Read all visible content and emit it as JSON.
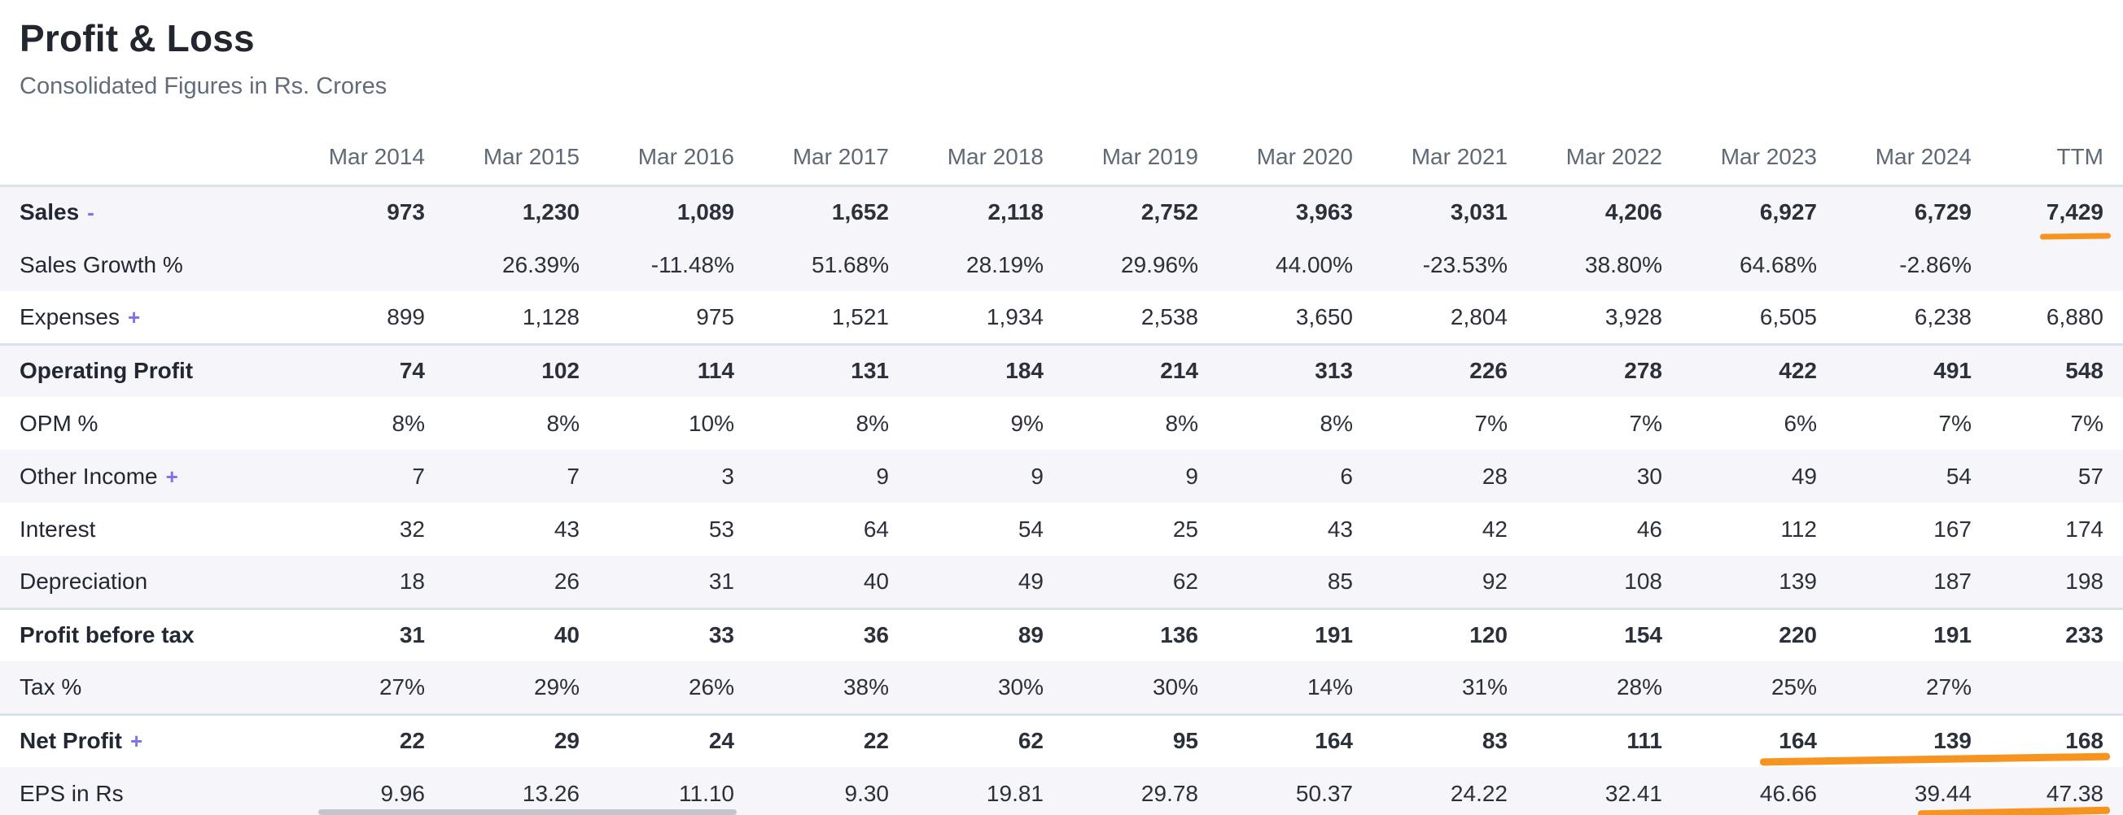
{
  "header": {
    "title": "Profit & Loss",
    "subtitle": "Consolidated Figures in Rs. Crores"
  },
  "colors": {
    "highlight_orange": "#f79420",
    "link_violet": "#7b72f0"
  },
  "table": {
    "columns": [
      "Mar 2014",
      "Mar 2015",
      "Mar 2016",
      "Mar 2017",
      "Mar 2018",
      "Mar 2019",
      "Mar 2020",
      "Mar 2021",
      "Mar 2022",
      "Mar 2023",
      "Mar 2024",
      "TTM"
    ],
    "rows": [
      {
        "label": "Sales",
        "suffix": "-",
        "bold": true,
        "striped": true,
        "values": [
          "973",
          "1,230",
          "1,089",
          "1,652",
          "2,118",
          "2,752",
          "3,963",
          "3,031",
          "4,206",
          "6,927",
          "6,729",
          "7,429"
        ]
      },
      {
        "label": "Sales Growth %",
        "suffix": "",
        "bold": false,
        "striped": true,
        "values": [
          "",
          "26.39%",
          "-11.48%",
          "51.68%",
          "28.19%",
          "29.96%",
          "44.00%",
          "-23.53%",
          "38.80%",
          "64.68%",
          "-2.86%",
          ""
        ]
      },
      {
        "label": "Expenses",
        "suffix": "+",
        "bold": false,
        "striped": false,
        "values": [
          "899",
          "1,128",
          "975",
          "1,521",
          "1,934",
          "2,538",
          "3,650",
          "2,804",
          "3,928",
          "6,505",
          "6,238",
          "6,880"
        ]
      },
      {
        "label": "Operating Profit",
        "suffix": "",
        "bold": true,
        "striped": true,
        "values": [
          "74",
          "102",
          "114",
          "131",
          "184",
          "214",
          "313",
          "226",
          "278",
          "422",
          "491",
          "548"
        ]
      },
      {
        "label": "OPM %",
        "suffix": "",
        "bold": false,
        "striped": false,
        "values": [
          "8%",
          "8%",
          "10%",
          "8%",
          "9%",
          "8%",
          "8%",
          "7%",
          "7%",
          "6%",
          "7%",
          "7%"
        ]
      },
      {
        "label": "Other Income",
        "suffix": "+",
        "bold": false,
        "striped": true,
        "values": [
          "7",
          "7",
          "3",
          "9",
          "9",
          "9",
          "6",
          "28",
          "30",
          "49",
          "54",
          "57"
        ]
      },
      {
        "label": "Interest",
        "suffix": "",
        "bold": false,
        "striped": false,
        "values": [
          "32",
          "43",
          "53",
          "64",
          "54",
          "25",
          "43",
          "42",
          "46",
          "112",
          "167",
          "174"
        ]
      },
      {
        "label": "Depreciation",
        "suffix": "",
        "bold": false,
        "striped": true,
        "values": [
          "18",
          "26",
          "31",
          "40",
          "49",
          "62",
          "85",
          "92",
          "108",
          "139",
          "187",
          "198"
        ]
      },
      {
        "label": "Profit before tax",
        "suffix": "",
        "bold": true,
        "striped": false,
        "values": [
          "31",
          "40",
          "33",
          "36",
          "89",
          "136",
          "191",
          "120",
          "154",
          "220",
          "191",
          "233"
        ]
      },
      {
        "label": "Tax %",
        "suffix": "",
        "bold": false,
        "striped": true,
        "values": [
          "27%",
          "29%",
          "26%",
          "38%",
          "30%",
          "30%",
          "14%",
          "31%",
          "28%",
          "25%",
          "27%",
          ""
        ]
      },
      {
        "label": "Net Profit",
        "suffix": "+",
        "bold": true,
        "striped": false,
        "values": [
          "22",
          "29",
          "24",
          "22",
          "62",
          "95",
          "164",
          "83",
          "111",
          "164",
          "139",
          "168"
        ]
      },
      {
        "label": "EPS in Rs",
        "suffix": "",
        "bold": false,
        "striped": true,
        "values": [
          "9.96",
          "13.26",
          "11.10",
          "9.30",
          "19.81",
          "29.78",
          "50.37",
          "24.22",
          "32.41",
          "46.66",
          "39.44",
          "47.38"
        ]
      }
    ]
  },
  "annotations": {
    "highlights": [
      "sales-ttm-underline",
      "net-profit-recent-underline",
      "eps-recent-underline"
    ]
  }
}
